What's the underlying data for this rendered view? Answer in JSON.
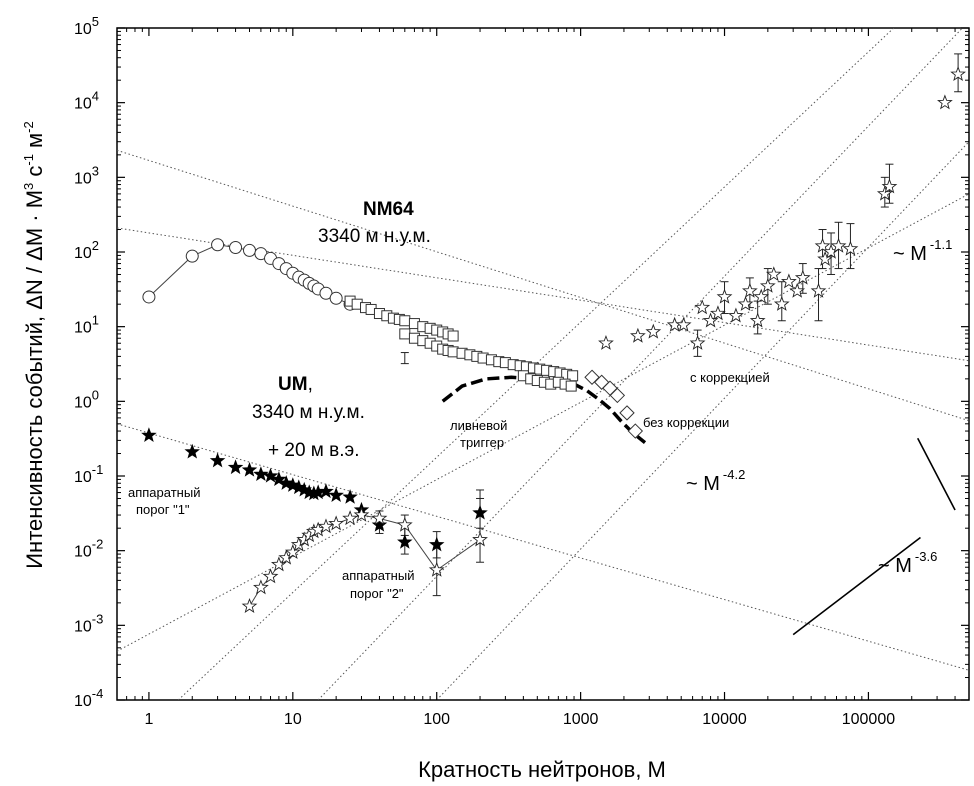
{
  "chart_data": {
    "type": "scatter",
    "xlabel": "Кратность нейтронов,   М",
    "ylabel": "Интенсивность событий, ΔN / ΔM · M",
    "ylabel_sup1": "3",
    "ylabel_mid": " c",
    "ylabel_sup2": "-1",
    "ylabel_end": " м",
    "ylabel_sup3": "-2",
    "xscale": "log",
    "yscale": "log",
    "xlim": [
      0.6,
      500000
    ],
    "ylim": [
      0.0001,
      100000
    ],
    "x_ticks": [
      1,
      10,
      100,
      1000,
      10000,
      100000
    ],
    "x_tick_labels": [
      "1",
      "10",
      "100",
      "1000",
      "10000",
      "100000"
    ],
    "y_ticks": [
      0.0001,
      0.001,
      0.01,
      0.1,
      1,
      10,
      100,
      1000,
      10000,
      100000
    ],
    "y_tick_base": "10",
    "y_tick_exps": [
      "-4",
      "-3",
      "-2",
      "-1",
      "0",
      "1",
      "2",
      "3",
      "4",
      "5"
    ],
    "grid": false,
    "legend": "none",
    "series": [
      {
        "marker": "open-circle",
        "connected": true,
        "points": [
          [
            1,
            25
          ],
          [
            2,
            88
          ],
          [
            3,
            125
          ],
          [
            4,
            115
          ],
          [
            5,
            105
          ],
          [
            6,
            95
          ],
          [
            7,
            82
          ],
          [
            8,
            70
          ],
          [
            9,
            60
          ],
          [
            10,
            52
          ],
          [
            11,
            46
          ],
          [
            12,
            42
          ],
          [
            13,
            38
          ],
          [
            14,
            35
          ],
          [
            15,
            32
          ],
          [
            17,
            28
          ],
          [
            20,
            24
          ],
          [
            25,
            20
          ]
        ]
      },
      {
        "marker": "open-square",
        "connected": false,
        "points": [
          [
            25,
            22
          ],
          [
            28,
            20
          ],
          [
            32,
            18
          ],
          [
            35,
            17
          ],
          [
            40,
            15
          ],
          [
            45,
            14
          ],
          [
            50,
            13
          ],
          [
            55,
            12.5
          ],
          [
            60,
            12
          ],
          [
            70,
            11
          ],
          [
            80,
            10
          ],
          [
            90,
            9.5
          ],
          [
            100,
            9
          ],
          [
            110,
            8.5
          ],
          [
            120,
            8
          ],
          [
            130,
            7.5
          ],
          [
            60,
            8
          ],
          [
            70,
            7
          ],
          [
            80,
            6.5
          ],
          [
            90,
            6
          ],
          [
            100,
            5.5
          ],
          [
            110,
            5
          ],
          [
            120,
            4.8
          ],
          [
            130,
            4.6
          ],
          [
            150,
            4.4
          ],
          [
            170,
            4.2
          ],
          [
            190,
            4.0
          ],
          [
            210,
            3.8
          ],
          [
            240,
            3.6
          ],
          [
            270,
            3.4
          ],
          [
            300,
            3.3
          ],
          [
            340,
            3.1
          ],
          [
            380,
            3.0
          ],
          [
            420,
            2.9
          ],
          [
            470,
            2.8
          ],
          [
            520,
            2.7
          ],
          [
            580,
            2.6
          ],
          [
            650,
            2.5
          ],
          [
            720,
            2.4
          ],
          [
            800,
            2.3
          ],
          [
            880,
            2.2
          ],
          [
            400,
            2.2
          ],
          [
            450,
            2.0
          ],
          [
            500,
            1.9
          ],
          [
            560,
            1.8
          ],
          [
            620,
            1.7
          ],
          [
            700,
            1.8
          ],
          [
            780,
            1.7
          ],
          [
            860,
            1.6
          ]
        ],
        "errors": [
          [
            60,
            3.2,
            4.5
          ]
        ]
      },
      {
        "marker": "open-diamond",
        "connected": false,
        "points": [
          [
            1200,
            2.1
          ],
          [
            1400,
            1.8
          ],
          [
            1600,
            1.5
          ],
          [
            1800,
            1.2
          ],
          [
            2100,
            0.7
          ],
          [
            2400,
            0.4
          ]
        ]
      },
      {
        "marker": "filled-star",
        "connected": false,
        "points": [
          [
            1,
            0.35
          ],
          [
            2,
            0.21
          ],
          [
            3,
            0.16
          ],
          [
            4,
            0.13
          ],
          [
            5,
            0.12
          ],
          [
            6,
            0.105
          ],
          [
            7,
            0.1
          ],
          [
            8,
            0.09
          ],
          [
            9,
            0.08
          ],
          [
            10,
            0.075
          ],
          [
            11,
            0.07
          ],
          [
            12,
            0.065
          ],
          [
            13,
            0.06
          ],
          [
            14,
            0.058
          ],
          [
            15,
            0.06
          ],
          [
            17,
            0.062
          ],
          [
            20,
            0.055
          ],
          [
            25,
            0.052
          ],
          [
            30,
            0.035
          ],
          [
            40,
            0.022
          ],
          [
            60,
            0.013
          ],
          [
            100,
            0.012
          ],
          [
            200,
            0.032
          ]
        ],
        "errors": [
          [
            40,
            0.017,
            0.028
          ],
          [
            60,
            0.009,
            0.02
          ],
          [
            100,
            0.008,
            0.018
          ],
          [
            200,
            0.02,
            0.05
          ]
        ]
      },
      {
        "marker": "open-star",
        "connected": true,
        "points": [
          [
            5,
            0.0018
          ],
          [
            6,
            0.0032
          ],
          [
            7,
            0.0045
          ],
          [
            8,
            0.0065
          ],
          [
            9,
            0.008
          ],
          [
            10,
            0.0095
          ],
          [
            11,
            0.012
          ],
          [
            12,
            0.014
          ],
          [
            13,
            0.016
          ],
          [
            14,
            0.018
          ],
          [
            15,
            0.019
          ],
          [
            17,
            0.021
          ],
          [
            20,
            0.023
          ],
          [
            25,
            0.027
          ],
          [
            30,
            0.03
          ],
          [
            40,
            0.027
          ],
          [
            60,
            0.022
          ],
          [
            100,
            0.0055
          ],
          [
            200,
            0.014
          ]
        ],
        "errors": [
          [
            40,
            0.02,
            0.034
          ],
          [
            60,
            0.016,
            0.03
          ],
          [
            100,
            0.0025,
            0.012
          ],
          [
            200,
            0.007,
            0.065
          ]
        ]
      },
      {
        "marker": "open-star",
        "connected": false,
        "points": [
          [
            1500,
            6
          ],
          [
            2500,
            7.5
          ],
          [
            3200,
            8.5
          ],
          [
            4500,
            10.5
          ],
          [
            5200,
            10.5
          ],
          [
            6500,
            6
          ],
          [
            7000,
            18
          ],
          [
            8000,
            12
          ],
          [
            9000,
            15
          ],
          [
            10000,
            25
          ],
          [
            12000,
            14
          ],
          [
            14000,
            20
          ],
          [
            15000,
            30
          ],
          [
            17000,
            12
          ],
          [
            18000,
            25
          ],
          [
            20000,
            35
          ],
          [
            22000,
            50
          ],
          [
            25000,
            20
          ],
          [
            28000,
            40
          ],
          [
            32000,
            30
          ],
          [
            35000,
            45
          ],
          [
            45000,
            30
          ],
          [
            48000,
            120
          ],
          [
            50000,
            80
          ],
          [
            55000,
            100
          ],
          [
            62000,
            120
          ],
          [
            75000,
            110
          ],
          [
            130000,
            600
          ],
          [
            140000,
            750
          ],
          [
            340000,
            10000
          ],
          [
            420000,
            24000
          ]
        ],
        "errors": [
          [
            6500,
            4,
            9
          ],
          [
            10000,
            15,
            40
          ],
          [
            15000,
            18,
            45
          ],
          [
            17000,
            8,
            22
          ],
          [
            20000,
            20,
            60
          ],
          [
            25000,
            12,
            40
          ],
          [
            35000,
            28,
            70
          ],
          [
            45000,
            12,
            60
          ],
          [
            48000,
            60,
            200
          ],
          [
            55000,
            50,
            180
          ],
          [
            62000,
            60,
            250
          ],
          [
            75000,
            60,
            240
          ],
          [
            130000,
            400,
            1000
          ],
          [
            140000,
            450,
            1500
          ],
          [
            420000,
            14000,
            45000
          ]
        ]
      }
    ],
    "shower_trigger_dashes": [
      [
        110,
        1.0
      ],
      [
        150,
        1.6
      ],
      [
        220,
        2.0
      ],
      [
        330,
        2.1
      ],
      [
        500,
        2.0
      ],
      [
        700,
        1.85
      ],
      [
        900,
        1.7
      ],
      [
        1100,
        1.4
      ],
      [
        1350,
        1.05
      ],
      [
        1600,
        0.8
      ],
      [
        1900,
        0.55
      ],
      [
        2300,
        0.38
      ],
      [
        2800,
        0.28
      ]
    ],
    "guide_lines": [
      [
        [
          0.6,
          2300
        ],
        [
          500000,
          0.55
        ]
      ],
      [
        [
          0.6,
          210
        ],
        [
          500000,
          3.5
        ]
      ],
      [
        [
          0.6,
          0.5
        ],
        [
          500000,
          0.00025
        ]
      ],
      [
        [
          0.6,
          0.00045
        ],
        [
          500000,
          600
        ]
      ],
      [
        [
          1.6,
          0.0001
        ],
        [
          150000,
          100000
        ]
      ],
      [
        [
          15,
          0.0001
        ],
        [
          450000,
          100000
        ]
      ],
      [
        [
          100,
          0.0001
        ],
        [
          500000,
          3000
        ]
      ]
    ],
    "solid_lines": [
      [
        [
          30000,
          0.00075
        ],
        [
          230000,
          0.015
        ]
      ],
      [
        [
          220000,
          0.32
        ],
        [
          400000,
          0.035
        ]
      ]
    ],
    "annotations": {
      "nm64_title": "NM64",
      "nm64_alt": "3340 м н.у.м.",
      "um_title": "UM",
      "um_comma": ",",
      "um_alt": "3340 м  н.у.м.",
      "um_we": "+ 20 м в.э.",
      "threshold1_a": "аппаратный",
      "threshold1_b": "порог  \"1\"",
      "threshold2_a": "аппаратный",
      "threshold2_b": "порог  \"2\"",
      "shower_a": "ливневой",
      "shower_b": "триггер",
      "with_corr": "с коррекцией",
      "without_corr": "без коррекции",
      "power_prefix": "~ M",
      "pow_11": "-1.1",
      "pow_42": "-4.2",
      "pow_36": "-3.6"
    }
  }
}
